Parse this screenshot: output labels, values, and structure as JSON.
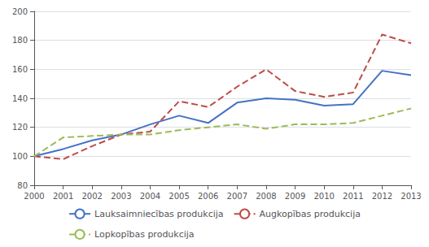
{
  "chart_data": {
    "type": "line",
    "x": [
      2000,
      2001,
      2002,
      2003,
      2004,
      2005,
      2006,
      2007,
      2008,
      2009,
      2010,
      2011,
      2012,
      2013
    ],
    "xlim": [
      2000,
      2013
    ],
    "xticks": [
      2000,
      2001,
      2002,
      2003,
      2004,
      2005,
      2006,
      2007,
      2008,
      2009,
      2010,
      2011,
      2012,
      2013
    ],
    "ylim": [
      80,
      200
    ],
    "yticks": [
      80,
      100,
      120,
      140,
      160,
      180,
      200
    ],
    "grid": true,
    "legend": "bottom",
    "series": [
      {
        "name": "Lauksaimniecības produkcija",
        "color": "#4472C4",
        "line_style": "solid",
        "values": [
          100,
          105,
          111,
          115,
          122,
          128,
          123,
          137,
          140,
          139,
          135,
          136,
          159,
          156
        ]
      },
      {
        "name": "Augkopības produkcija",
        "color": "#BE4B48",
        "line_style": "dashed",
        "values": [
          100,
          98,
          107,
          115,
          117,
          138,
          134,
          148,
          160,
          145,
          141,
          144,
          184,
          178
        ]
      },
      {
        "name": "Lopkopības produkcija",
        "color": "#9BBB59",
        "line_style": "dashed",
        "values": [
          100,
          113,
          114,
          115,
          115,
          118,
          120,
          122,
          119,
          122,
          122,
          123,
          128,
          133
        ]
      }
    ]
  }
}
